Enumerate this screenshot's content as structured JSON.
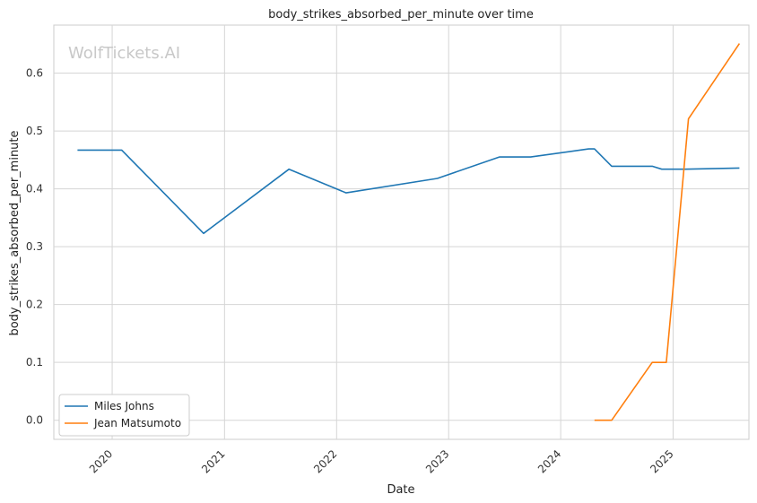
{
  "chart_data": {
    "type": "line",
    "title": "body_strikes_absorbed_per_minute over time",
    "xlabel": "Date",
    "ylabel": "body_strikes_absorbed_per_minute",
    "watermark": "WolfTickets.AI",
    "x_ticks": [
      "2020",
      "2021",
      "2022",
      "2023",
      "2024",
      "2025"
    ],
    "y_ticks": [
      "0.0",
      "0.1",
      "0.2",
      "0.3",
      "0.4",
      "0.5",
      "0.6"
    ],
    "xlim": [
      "2019-06-25",
      "2025-09-05"
    ],
    "ylim": [
      -0.033,
      0.683
    ],
    "grid": true,
    "legend_position": "lower-left",
    "series": [
      {
        "name": "Miles Johns",
        "color": "#1f77b4",
        "points": [
          [
            "2019-09-10",
            0.467
          ],
          [
            "2020-02-01",
            0.467
          ],
          [
            "2020-10-25",
            0.323
          ],
          [
            "2021-07-30",
            0.434
          ],
          [
            "2022-02-01",
            0.393
          ],
          [
            "2022-11-25",
            0.418
          ],
          [
            "2023-06-15",
            0.455
          ],
          [
            "2023-09-25",
            0.455
          ],
          [
            "2024-04-01",
            0.469
          ],
          [
            "2024-04-20",
            0.469
          ],
          [
            "2024-06-15",
            0.439
          ],
          [
            "2024-10-25",
            0.439
          ],
          [
            "2024-11-25",
            0.434
          ],
          [
            "2025-02-10",
            0.434
          ],
          [
            "2025-08-05",
            0.436
          ]
        ]
      },
      {
        "name": "Jean Matsumoto",
        "color": "#ff7f0e",
        "points": [
          [
            "2024-04-20",
            0.0
          ],
          [
            "2024-06-15",
            0.0
          ],
          [
            "2024-10-25",
            0.1
          ],
          [
            "2024-12-10",
            0.1
          ],
          [
            "2025-02-20",
            0.521
          ],
          [
            "2025-08-05",
            0.651
          ]
        ]
      }
    ]
  }
}
